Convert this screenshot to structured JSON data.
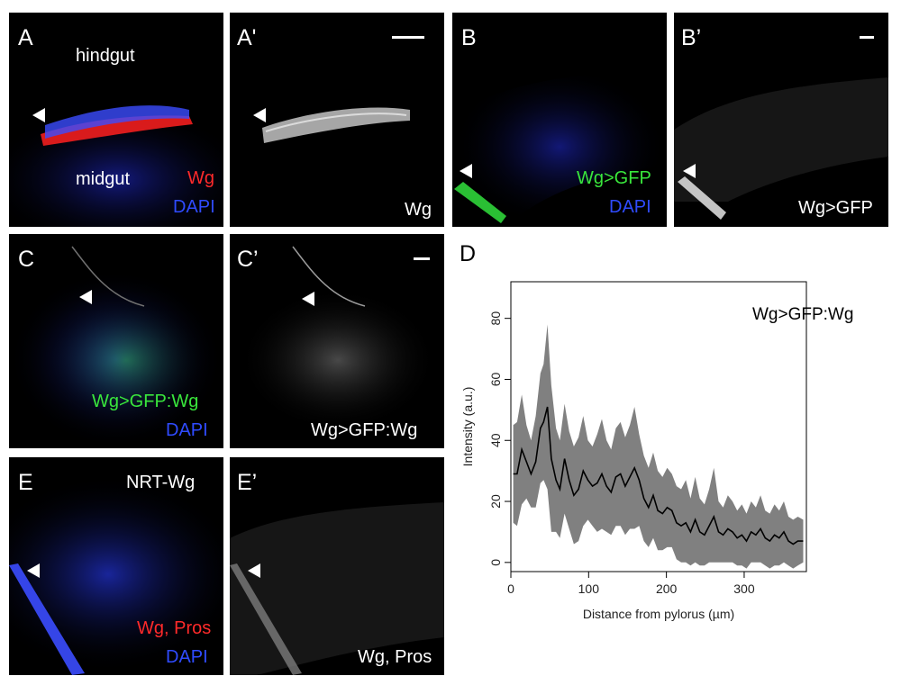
{
  "panels": {
    "A": {
      "label": "A",
      "tissue_top": "hindgut",
      "tissue_bottom": "midgut",
      "stain1": "Wg",
      "stain2": "DAPI"
    },
    "A_prime": {
      "label": "A'",
      "stain": "Wg"
    },
    "B": {
      "label": "B",
      "stain1": "Wg>GFP",
      "stain2": "DAPI"
    },
    "B_prime": {
      "label": "B’",
      "stain": "Wg>GFP"
    },
    "C": {
      "label": "C",
      "stain1": "Wg>GFP:Wg",
      "stain2": "DAPI"
    },
    "C_prime": {
      "label": "C’",
      "stain": "Wg>GFP:Wg"
    },
    "E": {
      "label": "E",
      "condition": "NRT-Wg",
      "stain1": "Wg, Pros",
      "stain2": "DAPI"
    },
    "E_prime": {
      "label": "E’",
      "stain": "Wg, Pros"
    }
  },
  "colors": {
    "red": "#ff2a2a",
    "green": "#39e63c",
    "blue": "#2f4bff",
    "band": "#808080"
  },
  "chart_data": {
    "type": "line",
    "panel_label": "D",
    "title": "",
    "annotation": "Wg>GFP:Wg",
    "xlabel": "Distance from pylorus (µm)",
    "ylabel": "Intensity (a.u.)",
    "xlim": [
      0,
      380
    ],
    "ylim": [
      -3,
      92
    ],
    "xticks": [
      0,
      100,
      200,
      300
    ],
    "yticks": [
      0,
      20,
      40,
      60,
      80
    ],
    "grid": false,
    "x": [
      3,
      8,
      14,
      20,
      26,
      32,
      38,
      42,
      47,
      52,
      58,
      63,
      69,
      75,
      81,
      87,
      93,
      99,
      105,
      111,
      117,
      123,
      129,
      135,
      141,
      147,
      153,
      159,
      165,
      171,
      177,
      183,
      189,
      195,
      201,
      207,
      213,
      219,
      225,
      231,
      237,
      243,
      249,
      255,
      261,
      267,
      273,
      279,
      285,
      291,
      297,
      303,
      309,
      315,
      321,
      327,
      333,
      339,
      345,
      351,
      357,
      363,
      369,
      376
    ],
    "mean": [
      29,
      29,
      37,
      33,
      29,
      33,
      44,
      46,
      51,
      34,
      27,
      24,
      34,
      27,
      22,
      24,
      30,
      27,
      25,
      26,
      29,
      25,
      23,
      28,
      29,
      25,
      28,
      31,
      27,
      21,
      18,
      22,
      17,
      16,
      18,
      17,
      13,
      12,
      13,
      10,
      14,
      10,
      9,
      12,
      15,
      10,
      9,
      11,
      10,
      8,
      9,
      7,
      10,
      9,
      11,
      8,
      7,
      9,
      8,
      10,
      7,
      6,
      7,
      7
    ],
    "upper": [
      45,
      46,
      55,
      45,
      40,
      48,
      62,
      65,
      78,
      58,
      44,
      40,
      52,
      43,
      38,
      41,
      48,
      40,
      38,
      42,
      47,
      40,
      37,
      44,
      46,
      41,
      45,
      51,
      42,
      35,
      31,
      36,
      30,
      28,
      31,
      29,
      25,
      24,
      27,
      21,
      28,
      21,
      19,
      24,
      31,
      20,
      18,
      22,
      20,
      17,
      19,
      16,
      20,
      18,
      22,
      17,
      16,
      19,
      17,
      20,
      15,
      14,
      15,
      14
    ],
    "lower": [
      13,
      12,
      19,
      21,
      18,
      18,
      26,
      27,
      24,
      10,
      10,
      8,
      16,
      11,
      6,
      7,
      12,
      14,
      12,
      10,
      11,
      10,
      9,
      12,
      12,
      9,
      11,
      11,
      12,
      7,
      5,
      8,
      4,
      4,
      5,
      5,
      1,
      0,
      0,
      -1,
      0,
      -1,
      -1,
      0,
      0,
      0,
      0,
      0,
      0,
      -1,
      -1,
      -2,
      0,
      0,
      0,
      -1,
      -2,
      -1,
      -1,
      0,
      -1,
      -2,
      -1,
      0
    ]
  }
}
